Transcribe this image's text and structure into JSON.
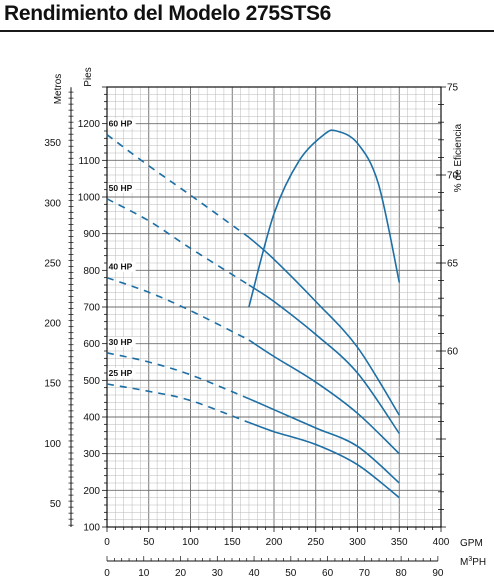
{
  "chart_data": {
    "type": "line",
    "title": "Rendimiento del Modelo 275STS6",
    "x_axis_gpm": {
      "label": "GPM",
      "range": [
        0,
        400
      ],
      "ticks": [
        "0",
        "50",
        "100",
        "150",
        "200",
        "250",
        "300",
        "350",
        "400"
      ]
    },
    "x_axis_m3ph": {
      "label": "M3PH",
      "label_main": "M",
      "label_sup": "3",
      "label_tail": "PH",
      "range": [
        0,
        90
      ],
      "ticks": [
        "0",
        "10",
        "20",
        "30",
        "40",
        "50",
        "60",
        "70",
        "80",
        "90"
      ]
    },
    "y_axis_feet": {
      "label": "Pies",
      "range": [
        100,
        1300
      ],
      "ticks": [
        "100",
        "200",
        "300",
        "400",
        "500",
        "600",
        "700",
        "800",
        "900",
        "1000",
        "1100",
        "1200"
      ]
    },
    "y_axis_meters": {
      "label": "Metros",
      "ticks": [
        "50",
        "100",
        "150",
        "200",
        "250",
        "300",
        "350"
      ]
    },
    "y_axis_efficiency": {
      "label": "% de Eficiencia",
      "range": [
        50,
        75
      ],
      "ticks": [
        "60",
        "65",
        "70",
        "75"
      ]
    },
    "grid": true,
    "series": [
      {
        "name": "60 HP",
        "color": "#1d6fa5",
        "dashed": [
          [
            0,
            1170
          ],
          [
            50,
            1085
          ],
          [
            100,
            1005
          ],
          [
            170,
            890
          ]
        ],
        "solid": [
          [
            170,
            890
          ],
          [
            200,
            830
          ],
          [
            250,
            715
          ],
          [
            300,
            590
          ],
          [
            350,
            405
          ]
        ]
      },
      {
        "name": "50 HP",
        "color": "#1d6fa5",
        "dashed": [
          [
            0,
            995
          ],
          [
            50,
            935
          ],
          [
            100,
            860
          ],
          [
            170,
            760
          ]
        ],
        "solid": [
          [
            170,
            760
          ],
          [
            200,
            715
          ],
          [
            250,
            625
          ],
          [
            300,
            520
          ],
          [
            350,
            355
          ]
        ]
      },
      {
        "name": "40 HP",
        "color": "#1d6fa5",
        "dashed": [
          [
            0,
            780
          ],
          [
            50,
            740
          ],
          [
            100,
            690
          ],
          [
            170,
            610
          ]
        ],
        "solid": [
          [
            170,
            610
          ],
          [
            200,
            565
          ],
          [
            250,
            495
          ],
          [
            300,
            410
          ],
          [
            350,
            300
          ]
        ]
      },
      {
        "name": "30 HP",
        "color": "#1d6fa5",
        "dashed": [
          [
            0,
            575
          ],
          [
            50,
            550
          ],
          [
            100,
            515
          ],
          [
            170,
            450
          ]
        ],
        "solid": [
          [
            170,
            450
          ],
          [
            200,
            420
          ],
          [
            250,
            370
          ],
          [
            300,
            320
          ],
          [
            350,
            220
          ]
        ]
      },
      {
        "name": "25 HP",
        "color": "#1d6fa5",
        "dashed": [
          [
            0,
            490
          ],
          [
            50,
            470
          ],
          [
            100,
            445
          ],
          [
            170,
            385
          ]
        ],
        "solid": [
          [
            170,
            385
          ],
          [
            200,
            360
          ],
          [
            250,
            325
          ],
          [
            300,
            270
          ],
          [
            350,
            180
          ]
        ]
      }
    ],
    "efficiency_curve": {
      "name": "Eficiencia",
      "color": "#1d6fa5",
      "points": [
        [
          170,
          62.5
        ],
        [
          200,
          67.8
        ],
        [
          230,
          70.8
        ],
        [
          260,
          72.3
        ],
        [
          275,
          72.5
        ],
        [
          300,
          71.8
        ],
        [
          325,
          69.5
        ],
        [
          350,
          63.9
        ]
      ]
    }
  }
}
